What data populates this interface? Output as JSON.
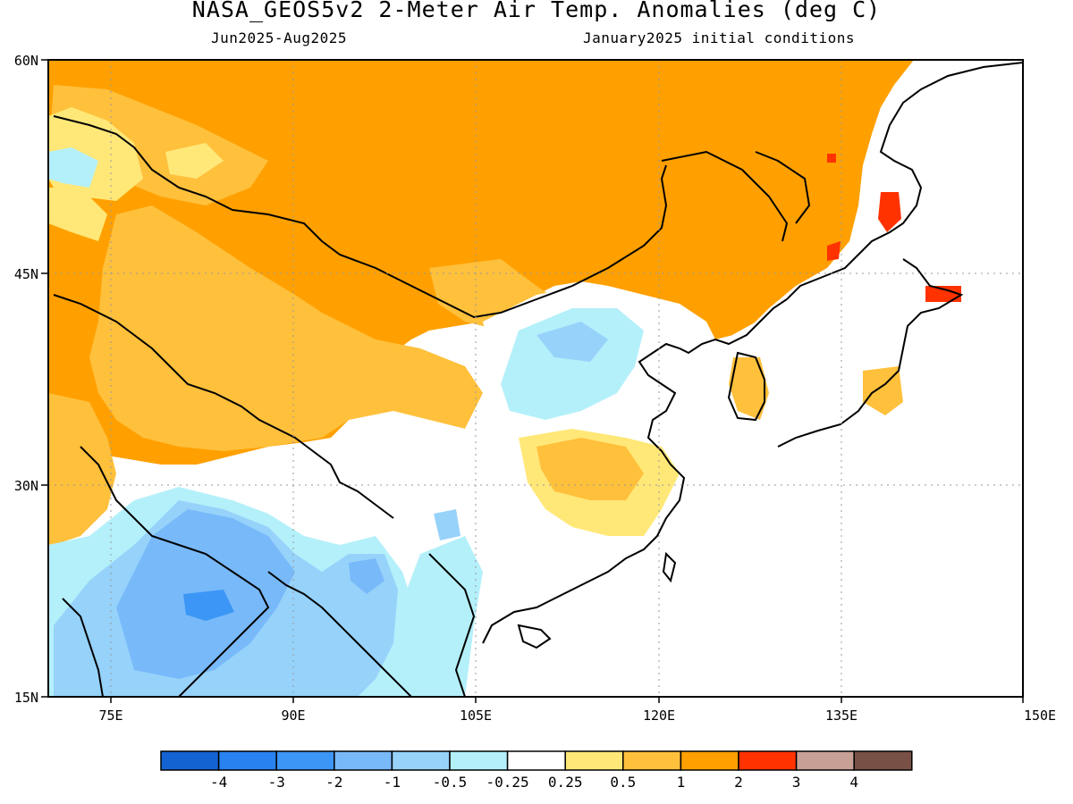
{
  "title": "NASA_GEOS5v2 2-Meter Air Temp. Anomalies (deg C)",
  "subtitle_left": "Jun2025-Aug2025",
  "subtitle_right": "January2025 initial conditions",
  "map": {
    "lon_range": [
      70,
      150
    ],
    "lat_range": [
      15,
      60
    ],
    "lat_labels": [
      "60N",
      "45N",
      "30N",
      "15N"
    ],
    "lon_labels": [
      "75E",
      "90E",
      "105E",
      "120E",
      "135E",
      "150E"
    ],
    "grid": "dotted",
    "coastline_color": "#000000"
  },
  "legend": {
    "colors": [
      "#1463d2",
      "#2882f0",
      "#3c96f5",
      "#78b9fa",
      "#96d2fa",
      "#b4f0fa",
      "#ffffff",
      "#ffe878",
      "#ffc03c",
      "#ffa000",
      "#ff3200",
      "#c8a096",
      "#785046"
    ],
    "labels": [
      "-4",
      "-3",
      "-2",
      "-1",
      "-0.5",
      "-0.25",
      "0.25",
      "0.5",
      "1",
      "2",
      "3",
      "4"
    ]
  }
}
